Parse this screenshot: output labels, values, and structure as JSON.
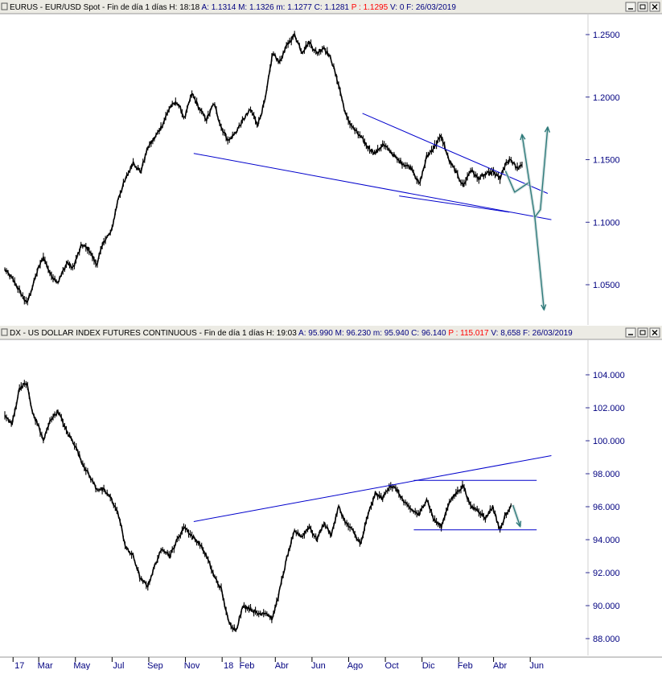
{
  "panels": [
    {
      "symbol": "EURUS",
      "caption": "EUR/USD Spot",
      "period": "Fin de día 1 días",
      "stats": [
        {
          "text": "H: 18:18",
          "color": "#000000"
        },
        {
          "text": "A: 1.1314",
          "color": "#000080"
        },
        {
          "text": "M: 1.1326",
          "color": "#000080"
        },
        {
          "text": "m: 1.1277",
          "color": "#000080"
        },
        {
          "text": "C: 1.1281",
          "color": "#000080"
        },
        {
          "text": "P : 1.1295",
          "color": "#ff0000"
        },
        {
          "text": "V: 0",
          "color": "#000080"
        },
        {
          "text": "F: 26/03/2019",
          "color": "#000080"
        }
      ],
      "window_buttons": [
        "minimize-icon",
        "restore-icon",
        "close-icon"
      ]
    },
    {
      "symbol": "DX",
      "caption": "US DOLLAR INDEX FUTURES CONTINUOUS",
      "period": "Fin de día 1 días",
      "stats": [
        {
          "text": "H: 19:03",
          "color": "#000000"
        },
        {
          "text": "A: 95.990",
          "color": "#000080"
        },
        {
          "text": "M: 96.230",
          "color": "#000080"
        },
        {
          "text": "m: 95.940",
          "color": "#000080"
        },
        {
          "text": "C: 96.140",
          "color": "#000080"
        },
        {
          "text": "P : 115.017",
          "color": "#ff0000"
        },
        {
          "text": "V: 8,658",
          "color": "#000080"
        },
        {
          "text": "F: 26/03/2019",
          "color": "#000080"
        }
      ],
      "window_buttons": [
        "minimize-icon",
        "restore-icon",
        "close-icon"
      ]
    }
  ],
  "chart_data": [
    {
      "type": "line",
      "title": "",
      "xlabel": "",
      "ylabel": "",
      "y_ticks": [
        1.05,
        1.1,
        1.15,
        1.2,
        1.25
      ],
      "y_tick_labels": [
        "1.0500",
        "1.1000",
        "1.1500",
        "1.2000",
        "1.2500"
      ],
      "ylim": [
        1.02,
        1.265
      ],
      "x_month_index_range": [
        0,
        29.8
      ],
      "grid": false,
      "series": [
        {
          "color": "#000000",
          "x_month_index": [
            0,
            0.4,
            0.8,
            1.2,
            1.5,
            1.8,
            2.1,
            2.5,
            2.9,
            3.4,
            3.7,
            4.2,
            4.6,
            5.0,
            5.4,
            5.8,
            6.2,
            6.6,
            7.0,
            7.4,
            7.8,
            8.2,
            8.6,
            9.0,
            9.4,
            9.8,
            10.2,
            10.6,
            11.0,
            11.4,
            11.8,
            12.2,
            12.6,
            13.0,
            13.4,
            13.8,
            14.2,
            14.6,
            15.0,
            15.4,
            15.8,
            16.2,
            16.6,
            17.0,
            17.4,
            17.8,
            18.2,
            18.6,
            19.0,
            19.4,
            19.8,
            20.2,
            20.6,
            21.0,
            21.4,
            21.8,
            22.2,
            22.6,
            23.0,
            23.4,
            23.8,
            24.2,
            24.6,
            25.0,
            25.4,
            25.8,
            26.2,
            26.6,
            27.0,
            27.3,
            27.6,
            27.9,
            28.2
          ],
          "values": [
            1.062,
            1.055,
            1.045,
            1.035,
            1.048,
            1.062,
            1.072,
            1.058,
            1.052,
            1.068,
            1.063,
            1.082,
            1.078,
            1.066,
            1.085,
            1.092,
            1.12,
            1.135,
            1.148,
            1.14,
            1.16,
            1.168,
            1.178,
            1.192,
            1.196,
            1.183,
            1.203,
            1.191,
            1.182,
            1.195,
            1.176,
            1.165,
            1.172,
            1.182,
            1.19,
            1.178,
            1.198,
            1.235,
            1.228,
            1.242,
            1.25,
            1.236,
            1.244,
            1.235,
            1.24,
            1.23,
            1.21,
            1.185,
            1.175,
            1.168,
            1.16,
            1.155,
            1.162,
            1.157,
            1.15,
            1.146,
            1.143,
            1.13,
            1.152,
            1.16,
            1.169,
            1.15,
            1.14,
            1.129,
            1.142,
            1.135,
            1.138,
            1.14,
            1.135,
            1.146,
            1.15,
            1.143,
            1.146
          ]
        }
      ],
      "annotations": {
        "trendlines": [
          {
            "color": "#0000cc",
            "x_month_index": [
              10.3,
              29.8
            ],
            "values": [
              1.155,
              1.102
            ]
          },
          {
            "color": "#0000cc",
            "x_month_index": [
              19.5,
              29.6
            ],
            "values": [
              1.187,
              1.123
            ]
          },
          {
            "color": "#0000cc",
            "x_month_index": [
              21.5,
              27.5
            ],
            "values": [
              1.121,
              1.108
            ]
          }
        ],
        "forecast_arrows": [
          {
            "color": "#2e7a7a",
            "x_month_index": [
              27.3,
              27.8,
              28.6,
              28.2
            ],
            "values": [
              1.141,
              1.124,
              1.132,
              1.17
            ]
          },
          {
            "color": "#2e7a7a",
            "x_month_index": [
              28.6,
              28.9,
              29.2,
              29.6
            ],
            "values": [
              1.132,
              1.104,
              1.11,
              1.176
            ]
          },
          {
            "color": "#2e7a7a",
            "x_month_index": [
              28.9,
              29.4
            ],
            "values": [
              1.104,
              1.03
            ]
          }
        ]
      }
    },
    {
      "type": "line",
      "title": "",
      "xlabel": "",
      "ylabel": "",
      "y_ticks": [
        88,
        90,
        92,
        94,
        96,
        98,
        100,
        102,
        104
      ],
      "y_tick_labels": [
        "88.000",
        "90.000",
        "92.000",
        "94.000",
        "96.000",
        "98.000",
        "100.000",
        "102.000",
        "104.000"
      ],
      "ylim": [
        87.2,
        105.0
      ],
      "x_month_index_range": [
        0,
        29.8
      ],
      "grid": false,
      "series": [
        {
          "color": "#000000",
          "x_month_index": [
            0,
            0.4,
            0.8,
            1.2,
            1.5,
            1.8,
            2.1,
            2.5,
            2.9,
            3.4,
            3.8,
            4.2,
            4.6,
            5.0,
            5.4,
            5.8,
            6.2,
            6.6,
            7.0,
            7.4,
            7.8,
            8.2,
            8.6,
            9.0,
            9.4,
            9.8,
            10.2,
            10.6,
            11.0,
            11.4,
            11.8,
            12.2,
            12.6,
            13.0,
            13.4,
            13.8,
            14.2,
            14.6,
            15.0,
            15.4,
            15.8,
            16.2,
            16.6,
            17.0,
            17.4,
            17.8,
            18.2,
            18.6,
            19.0,
            19.4,
            19.8,
            20.2,
            20.6,
            21.0,
            21.4,
            21.8,
            22.2,
            22.6,
            23.0,
            23.4,
            23.8,
            24.2,
            24.6,
            25.0,
            25.4,
            25.8,
            26.2,
            26.6,
            27.0,
            27.3,
            27.6
          ],
          "values": [
            101.5,
            101.0,
            103.2,
            103.5,
            101.7,
            101.0,
            100.0,
            101.3,
            101.8,
            100.5,
            99.8,
            98.7,
            97.9,
            97.1,
            97.0,
            96.5,
            95.5,
            93.5,
            93.0,
            91.6,
            91.2,
            92.5,
            93.5,
            93.0,
            94.0,
            94.8,
            94.2,
            93.8,
            93.0,
            91.8,
            91.0,
            89.0,
            88.5,
            90.0,
            89.8,
            89.5,
            89.6,
            89.2,
            91.0,
            93.0,
            94.5,
            94.2,
            94.8,
            94.0,
            95.0,
            94.3,
            96.0,
            95.0,
            94.5,
            93.7,
            95.5,
            96.8,
            96.5,
            97.3,
            97.0,
            96.2,
            95.8,
            95.5,
            96.5,
            95.2,
            94.8,
            96.2,
            96.8,
            97.3,
            96.0,
            95.8,
            95.3,
            96.0,
            94.6,
            95.5,
            96.1
          ]
        }
      ],
      "annotations": {
        "trendlines": [
          {
            "color": "#0000cc",
            "x_month_index": [
              10.3,
              29.8
            ],
            "values": [
              95.1,
              99.1
            ]
          },
          {
            "color": "#0000cc",
            "x_month_index": [
              22.3,
              29.0
            ],
            "values": [
              97.6,
              97.6
            ]
          },
          {
            "color": "#0000cc",
            "x_month_index": [
              22.3,
              29.0
            ],
            "values": [
              94.6,
              94.6
            ]
          }
        ],
        "forecast_arrows": [
          {
            "color": "#2e7a7a",
            "x_month_index": [
              27.7,
              28.1
            ],
            "values": [
              96.1,
              94.8
            ]
          }
        ]
      }
    }
  ],
  "x_axis": {
    "ticks": [
      {
        "label": "17",
        "month_index": 0.8
      },
      {
        "label": "Mar",
        "month_index": 2.2
      },
      {
        "label": "May",
        "month_index": 4.2
      },
      {
        "label": "Jul",
        "month_index": 6.2
      },
      {
        "label": "Sep",
        "month_index": 8.2
      },
      {
        "label": "Nov",
        "month_index": 10.2
      },
      {
        "label": "18",
        "month_index": 12.2
      },
      {
        "label": "Feb",
        "month_index": 13.2
      },
      {
        "label": "Abr",
        "month_index": 15.1
      },
      {
        "label": "Jun",
        "month_index": 17.1
      },
      {
        "label": "Ago",
        "month_index": 19.1
      },
      {
        "label": "Oct",
        "month_index": 21.1
      },
      {
        "label": "Dic",
        "month_index": 23.1
      },
      {
        "label": "Feb",
        "month_index": 25.1
      },
      {
        "label": "Abr",
        "month_index": 27.0
      },
      {
        "label": "Jun",
        "month_index": 29.0
      }
    ]
  }
}
